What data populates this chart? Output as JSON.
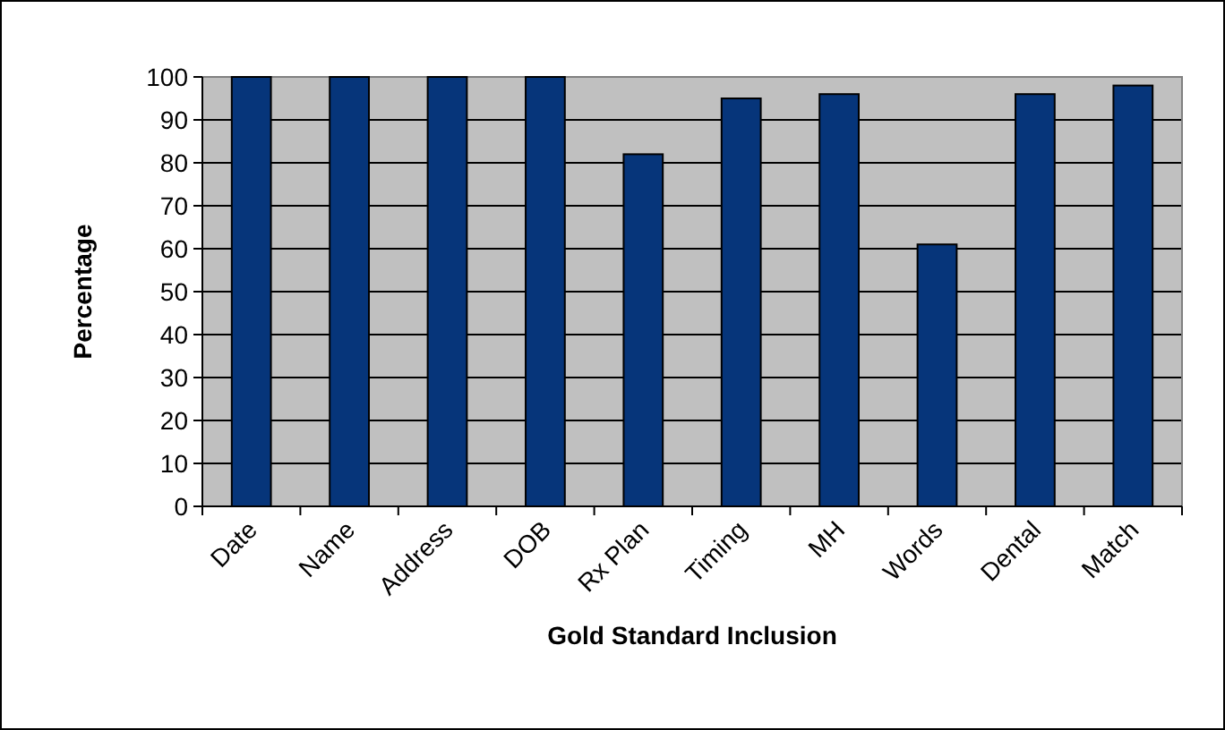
{
  "chart_data": {
    "type": "bar",
    "xlabel": "Gold Standard Inclusion",
    "ylabel": "Percentage",
    "categories": [
      "Date",
      "Name",
      "Address",
      "DOB",
      "Rx Plan",
      "Timing",
      "MH",
      "Words",
      "Dental",
      "Match"
    ],
    "values": [
      100,
      100,
      100,
      100,
      82,
      95,
      96,
      61,
      96,
      98
    ],
    "color": "#06357a",
    "ylim": [
      0,
      100
    ],
    "yticks": [
      0,
      10,
      20,
      30,
      40,
      50,
      60,
      70,
      80,
      90,
      100
    ],
    "grid": "y"
  }
}
